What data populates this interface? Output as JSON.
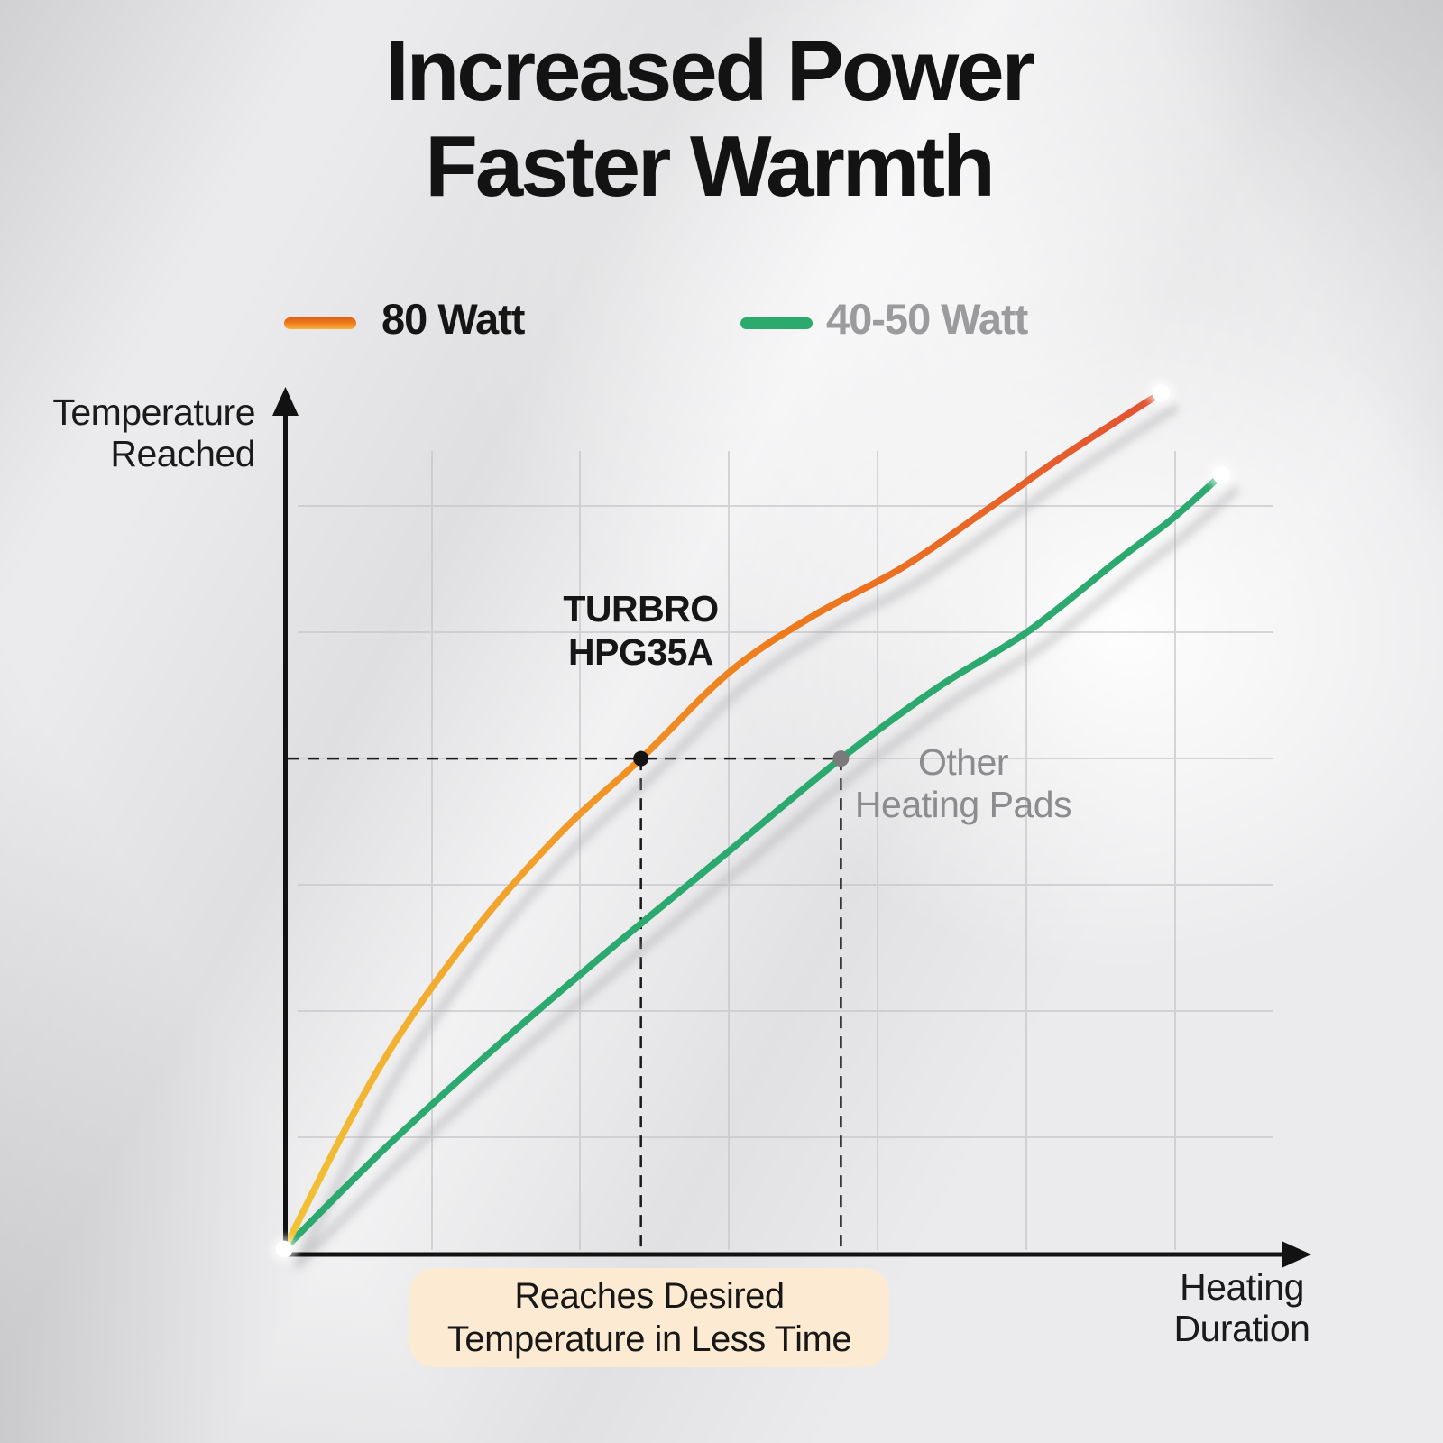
{
  "title": {
    "line1": "Increased Power",
    "line2": "Faster Warmth"
  },
  "legend": {
    "item1": {
      "label": "80 Watt",
      "swatch_gradient_top": "#e05e15",
      "swatch_gradient_bottom": "#f8b33e",
      "text_color": "#151515"
    },
    "item2": {
      "label": "40-50 Watt",
      "swatch_color": "#2caa6d",
      "text_color": "#9b9b9e"
    }
  },
  "axes": {
    "y_label_line1": "Temperature",
    "y_label_line2": "Reached",
    "x_label_line1": "Heating",
    "x_label_line2": "Duration"
  },
  "annotations": {
    "series1_line1": "TURBRO",
    "series1_line2": "HPG35A",
    "series2_line1": "Other",
    "series2_line2": "Heating Pads",
    "note_line1": "Reaches Desired",
    "note_line2": "Temperature in Less Time",
    "note_bg": "#fcead2"
  },
  "colors": {
    "title_text": "#131313",
    "axis": "#121212",
    "grid": "#c7c7ca",
    "dashed": "#191919",
    "gray_text": "#8c8c8e",
    "intersection_dot_80w": "#141414",
    "intersection_dot_40_50w": "#7a7a7c",
    "curve_shadow": "#a8a8ab"
  },
  "chart_data": {
    "type": "line",
    "title": "Increased Power Faster Warmth",
    "xlabel": "Heating Duration",
    "ylabel": "Temperature Reached",
    "legend_position": "top",
    "grid": true,
    "grid_lines": {
      "vertical": 6,
      "horizontal": 6
    },
    "axis_ticks": "none (qualitative axes, normalized 0-1 units)",
    "series": [
      {
        "name": "80 Watt",
        "curve_label": "TURBRO HPG35A",
        "color_gradient": [
          "#f2c335",
          "#f2a12c",
          "#ee7a1c",
          "#e25233"
        ],
        "points_xy_normalized": [
          [
            0.0,
            0.003
          ],
          [
            0.092,
            0.212
          ],
          [
            0.18,
            0.364
          ],
          [
            0.268,
            0.484
          ],
          [
            0.348,
            0.572
          ],
          [
            0.435,
            0.673
          ],
          [
            0.515,
            0.737
          ],
          [
            0.602,
            0.793
          ],
          [
            0.682,
            0.858
          ],
          [
            0.761,
            0.924
          ],
          [
            0.855,
            0.996
          ]
        ]
      },
      {
        "name": "40-50 Watt",
        "curve_label": "Other Heating Pads",
        "color": "#2ba96e",
        "points_xy_normalized": [
          [
            0.0,
            0.003
          ],
          [
            0.101,
            0.123
          ],
          [
            0.207,
            0.238
          ],
          [
            0.321,
            0.354
          ],
          [
            0.427,
            0.458
          ],
          [
            0.543,
            0.572
          ],
          [
            0.638,
            0.655
          ],
          [
            0.726,
            0.72
          ],
          [
            0.814,
            0.803
          ],
          [
            0.866,
            0.85
          ],
          [
            0.914,
            0.901
          ]
        ]
      }
    ],
    "annotation": {
      "desired_temperature_level": 0.572,
      "reach_time_80w": 0.348,
      "reach_time_40_50w": 0.543,
      "note": "Reaches Desired Temperature in Less Time"
    }
  }
}
